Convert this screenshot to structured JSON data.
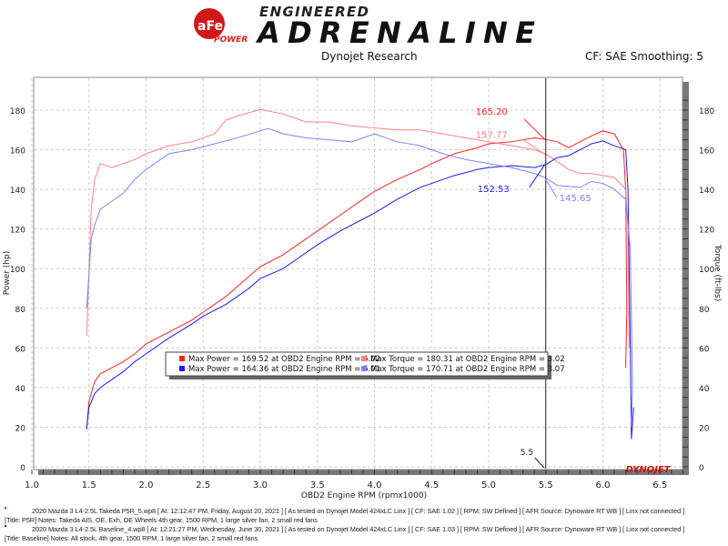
{
  "header": {
    "logo_brand": "aFe POWER",
    "logo_top": "ENGINEERED",
    "logo_main": "ADRENALINE",
    "center_title": "Dynojet Research",
    "right_info": "CF: SAE Smoothing: 5"
  },
  "chart_data": {
    "type": "line",
    "xlabel": "OBD2 Engine RPM (rpmx1000)",
    "ylabel": "Power (hp)",
    "y2label": "Torque (ft-lbs)",
    "xlim": [
      1.0,
      6.75
    ],
    "ylim": [
      0,
      190
    ],
    "y2lim": [
      0,
      190
    ],
    "xticks": [
      "1.0",
      "1.5",
      "2.0",
      "2.5",
      "3.0",
      "3.5",
      "4.0",
      "4.5",
      "5.0",
      "5.5",
      "6.0",
      "6.5"
    ],
    "yticks": [
      "0",
      "20",
      "40",
      "60",
      "80",
      "100",
      "120",
      "140",
      "160",
      "180"
    ],
    "grid": true,
    "cursor": {
      "x": 5.5,
      "label": "5.5"
    },
    "annotations": [
      {
        "text": "165.20",
        "color": "#ff2020",
        "value": 165.2
      },
      {
        "text": "157.77",
        "color": "#ff7b7b",
        "value": 157.77
      },
      {
        "text": "152.53",
        "color": "#1a1aff",
        "value": 152.53
      },
      {
        "text": "145.65",
        "color": "#7f7fff",
        "value": 145.65
      }
    ],
    "legend": {
      "placement": "bottom-center",
      "entries": [
        "Max Power = 169.52 at OBD2 Engine RPM = 6.02",
        "Max Torque = 180.31 at OBD2 Engine RPM = 3.02",
        "Max Power = 164.36 at OBD2 Engine RPM = 6.01",
        "Max Torque = 170.71 at OBD2 Engine RPM = 3.07"
      ]
    },
    "watermark": "DYNOJET",
    "series": [
      {
        "kind": "power",
        "run": "P5R",
        "color": "#ff2020",
        "points": [
          [
            1.48,
            19
          ],
          [
            1.5,
            33
          ],
          [
            1.55,
            43
          ],
          [
            1.6,
            47
          ],
          [
            1.7,
            50
          ],
          [
            1.8,
            53
          ],
          [
            1.9,
            57
          ],
          [
            2.0,
            62
          ],
          [
            2.2,
            68
          ],
          [
            2.4,
            74
          ],
          [
            2.5,
            78
          ],
          [
            2.7,
            86
          ],
          [
            2.9,
            96
          ],
          [
            3.0,
            101
          ],
          [
            3.2,
            107
          ],
          [
            3.4,
            115
          ],
          [
            3.5,
            119
          ],
          [
            3.7,
            127
          ],
          [
            3.9,
            135
          ],
          [
            4.0,
            139
          ],
          [
            4.2,
            145
          ],
          [
            4.4,
            150
          ],
          [
            4.5,
            153
          ],
          [
            4.7,
            158
          ],
          [
            4.9,
            161
          ],
          [
            5.0,
            163
          ],
          [
            5.2,
            164
          ],
          [
            5.4,
            166
          ],
          [
            5.5,
            165.2
          ],
          [
            5.6,
            164
          ],
          [
            5.7,
            161
          ],
          [
            5.8,
            164
          ],
          [
            5.9,
            167
          ],
          [
            6.0,
            169.5
          ],
          [
            6.1,
            168
          ],
          [
            6.18,
            160
          ],
          [
            6.2,
            140
          ],
          [
            6.21,
            80
          ],
          [
            6.2,
            50
          ]
        ]
      },
      {
        "kind": "torque",
        "run": "P5R",
        "color": "#ff8080",
        "points": [
          [
            1.48,
            66
          ],
          [
            1.52,
            130
          ],
          [
            1.55,
            145
          ],
          [
            1.6,
            153
          ],
          [
            1.65,
            152
          ],
          [
            1.7,
            151
          ],
          [
            1.8,
            153
          ],
          [
            1.9,
            155
          ],
          [
            2.0,
            158
          ],
          [
            2.2,
            162
          ],
          [
            2.4,
            164
          ],
          [
            2.6,
            168
          ],
          [
            2.7,
            175
          ],
          [
            2.8,
            177
          ],
          [
            3.0,
            180.3
          ],
          [
            3.2,
            178
          ],
          [
            3.4,
            174
          ],
          [
            3.6,
            174
          ],
          [
            3.8,
            172
          ],
          [
            4.0,
            171
          ],
          [
            4.2,
            170
          ],
          [
            4.4,
            170
          ],
          [
            4.6,
            168
          ],
          [
            4.8,
            166
          ],
          [
            5.0,
            164
          ],
          [
            5.2,
            162
          ],
          [
            5.4,
            160
          ],
          [
            5.5,
            157.8
          ],
          [
            5.6,
            154
          ],
          [
            5.7,
            150
          ],
          [
            5.8,
            148
          ],
          [
            5.9,
            148
          ],
          [
            6.0,
            147
          ],
          [
            6.1,
            146
          ],
          [
            6.2,
            140
          ],
          [
            6.22,
            120
          ],
          [
            6.23,
            60
          ]
        ]
      },
      {
        "kind": "power",
        "run": "Baseline",
        "color": "#1a1aff",
        "points": [
          [
            1.48,
            19
          ],
          [
            1.5,
            30
          ],
          [
            1.55,
            37
          ],
          [
            1.6,
            40
          ],
          [
            1.7,
            44
          ],
          [
            1.8,
            48
          ],
          [
            1.9,
            53
          ],
          [
            2.0,
            57
          ],
          [
            2.2,
            65
          ],
          [
            2.4,
            72
          ],
          [
            2.5,
            76
          ],
          [
            2.7,
            82
          ],
          [
            2.9,
            90
          ],
          [
            3.0,
            95
          ],
          [
            3.2,
            100
          ],
          [
            3.4,
            108
          ],
          [
            3.5,
            112
          ],
          [
            3.7,
            119
          ],
          [
            3.9,
            125
          ],
          [
            4.0,
            128
          ],
          [
            4.2,
            135
          ],
          [
            4.4,
            141
          ],
          [
            4.5,
            143
          ],
          [
            4.7,
            147
          ],
          [
            4.9,
            150
          ],
          [
            5.0,
            151
          ],
          [
            5.2,
            152
          ],
          [
            5.4,
            151
          ],
          [
            5.5,
            152.5
          ],
          [
            5.6,
            156
          ],
          [
            5.7,
            157
          ],
          [
            5.8,
            160
          ],
          [
            5.9,
            163
          ],
          [
            6.0,
            164.4
          ],
          [
            6.1,
            162
          ],
          [
            6.2,
            160
          ],
          [
            6.22,
            140
          ],
          [
            6.24,
            60
          ],
          [
            6.25,
            14
          ],
          [
            6.27,
            30
          ]
        ]
      },
      {
        "kind": "torque",
        "run": "Baseline",
        "color": "#8080ff",
        "points": [
          [
            1.48,
            80
          ],
          [
            1.52,
            115
          ],
          [
            1.55,
            122
          ],
          [
            1.6,
            130
          ],
          [
            1.7,
            134
          ],
          [
            1.8,
            138
          ],
          [
            1.9,
            145
          ],
          [
            2.0,
            150
          ],
          [
            2.2,
            158
          ],
          [
            2.4,
            160
          ],
          [
            2.6,
            163
          ],
          [
            2.8,
            166
          ],
          [
            3.07,
            170.7
          ],
          [
            3.2,
            168
          ],
          [
            3.4,
            166
          ],
          [
            3.6,
            165
          ],
          [
            3.8,
            164
          ],
          [
            4.0,
            168
          ],
          [
            4.2,
            164
          ],
          [
            4.4,
            162
          ],
          [
            4.6,
            158
          ],
          [
            4.8,
            155
          ],
          [
            5.0,
            153
          ],
          [
            5.2,
            151
          ],
          [
            5.4,
            148
          ],
          [
            5.5,
            145.7
          ],
          [
            5.6,
            142
          ],
          [
            5.8,
            141
          ],
          [
            5.9,
            144
          ],
          [
            6.0,
            143
          ],
          [
            6.1,
            140
          ],
          [
            6.2,
            135
          ],
          [
            6.24,
            110
          ],
          [
            6.26,
            40
          ],
          [
            6.25,
            20
          ]
        ]
      }
    ]
  },
  "footer": {
    "run1_line1": "2020 Mazda 3 L4-2.5L Takeda P5R_5.wp8 [ At: 12:12:47 PM, Friday, August 20, 2021 ] [ As tested on Dynojet Model 424xLC Linx ] [ CF: SAE 1.02 ] [ RPM: SW Defined ] [ AFR Source: Dynoware RT WB ] [ Linx not connected ]",
    "run1_line2": "[Title: P5R]  Notes: Takeda AIS, OE, Exh, OE Wheels 4th gear, 1500 RPM, 1 large silver fan, 2 small red fans",
    "run2_line1": "2020 Mazda 3 L4-2.5L Baseline_4.wp8 [ At: 12:21:27 PM, Wednesday, June 30, 2021 ] [ As tested on Dynojet Model 424xLC Linx ] [ CF: SAE 1.03 ] [ RPM: SW Defined ] [ AFR Source: Dynoware RT WB ] [ Linx not connected ]",
    "run2_line2": "[Title: Baseline]  Notes: All stock, 4th gear, 1500 RPM, 1 large silver fan, 2 small red fans"
  }
}
